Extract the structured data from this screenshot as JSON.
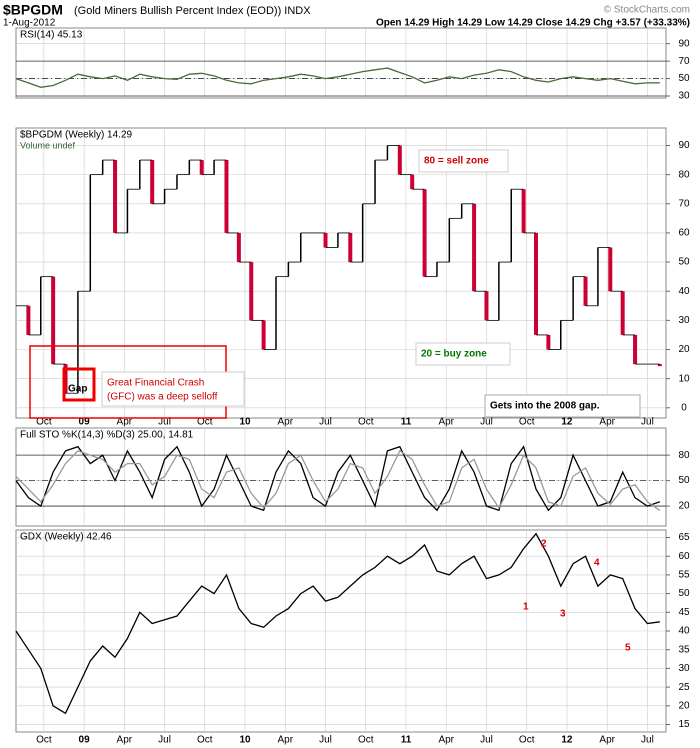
{
  "chart_data": {
    "type": "multi-panel",
    "title": "$BPGDM",
    "subtitle": "(Gold Miners Bullish Percent Index (EOD))  INDX",
    "date": "1-Aug-2012",
    "quote": "Open 14.29  High 14.29  Low 14.29  Close 14.29  Chg +3.57 (+33.33%)",
    "copyright": "© StockCharts.com",
    "xlim": [
      0,
      210
    ],
    "xticks": [
      {
        "value": 9,
        "label": "Oct"
      },
      {
        "value": 22,
        "label": "09"
      },
      {
        "value": 35,
        "label": "Apr"
      },
      {
        "value": 48,
        "label": "Jul"
      },
      {
        "value": 61,
        "label": "Oct"
      },
      {
        "value": 74,
        "label": "10"
      },
      {
        "value": 87,
        "label": "Apr"
      },
      {
        "value": 100,
        "label": "Jul"
      },
      {
        "value": 113,
        "label": "Oct"
      },
      {
        "value": 126,
        "label": "11"
      },
      {
        "value": 139,
        "label": "Apr"
      },
      {
        "value": 152,
        "label": "Jul"
      },
      {
        "value": 165,
        "label": "Oct"
      },
      {
        "value": 178,
        "label": "12"
      },
      {
        "value": 191,
        "label": "Apr"
      },
      {
        "value": 204,
        "label": "Jul"
      }
    ],
    "x": [
      0,
      4,
      8,
      12,
      16,
      20,
      24,
      28,
      32,
      36,
      40,
      44,
      48,
      52,
      56,
      60,
      64,
      68,
      72,
      76,
      80,
      84,
      88,
      92,
      96,
      100,
      104,
      108,
      112,
      116,
      120,
      124,
      128,
      132,
      136,
      140,
      144,
      148,
      152,
      156,
      160,
      164,
      168,
      172,
      176,
      180,
      184,
      188,
      192,
      196,
      200,
      204,
      208
    ],
    "panels": [
      {
        "type": "line",
        "title": "RSI(14) 45.13",
        "ylim": [
          27.7,
          108
        ],
        "yticks": [
          90,
          70,
          50,
          30
        ],
        "ref_lines": [
          70,
          50,
          30
        ],
        "series": [
          {
            "color": "#4a6b3a",
            "values": [
              50,
              45,
              40,
              42,
              48,
              55,
              52,
              50,
              53,
              48,
              55,
              52,
              50,
              49,
              55,
              56,
              53,
              48,
              45,
              44,
              48,
              50,
              52,
              55,
              53,
              50,
              52,
              55,
              58,
              60,
              62,
              57,
              52,
              45,
              48,
              52,
              50,
              54,
              56,
              60,
              58,
              52,
              48,
              46,
              50,
              52,
              50,
              48,
              50,
              47,
              44,
              45,
              45.13
            ]
          }
        ]
      },
      {
        "type": "step",
        "title": "$BPGDM (Weekly) 14.29",
        "subtitle": "Volume undef",
        "ylim": [
          -3.5,
          96
        ],
        "yticks": [
          0,
          10,
          20,
          30,
          40,
          50,
          60,
          70,
          80,
          90
        ],
        "up_color": "#000000",
        "down_color": "#cc0033",
        "annotations": [
          "80 = sell zone",
          "20 = buy zone",
          "Gap",
          "Great Financial Crash",
          "(GFC) was a deep selloff",
          "Gets into the 2008 gap."
        ],
        "series": [
          {
            "values": [
              35,
              25,
              45,
              15,
              5,
              40,
              80,
              85,
              60,
              75,
              85,
              70,
              75,
              80,
              85,
              80,
              85,
              60,
              50,
              30,
              20,
              45,
              50,
              60,
              60,
              55,
              60,
              50,
              70,
              85,
              90,
              80,
              75,
              45,
              50,
              65,
              70,
              40,
              30,
              50,
              75,
              60,
              25,
              20,
              30,
              45,
              35,
              55,
              40,
              25,
              15,
              15,
              14.29
            ]
          }
        ]
      },
      {
        "type": "line",
        "title": "Full STO %K(14,3) %D(3) 25.00, 14.81",
        "ylim": [
          -3.5,
          112
        ],
        "yticks": [
          80,
          50,
          20
        ],
        "ref_lines": [
          80,
          50,
          20
        ],
        "series": [
          {
            "color": "#000000",
            "values": [
              50,
              30,
              20,
              60,
              85,
              90,
              70,
              80,
              50,
              85,
              60,
              30,
              75,
              90,
              60,
              20,
              40,
              80,
              50,
              20,
              15,
              60,
              85,
              70,
              30,
              20,
              60,
              80,
              50,
              20,
              85,
              90,
              60,
              30,
              15,
              40,
              85,
              60,
              20,
              15,
              70,
              90,
              40,
              15,
              30,
              80,
              50,
              20,
              25,
              60,
              30,
              20,
              25
            ]
          },
          {
            "color": "#999999",
            "values": [
              55,
              40,
              25,
              45,
              70,
              85,
              80,
              75,
              60,
              70,
              70,
              45,
              55,
              80,
              75,
              40,
              30,
              60,
              65,
              35,
              18,
              35,
              70,
              80,
              50,
              25,
              40,
              70,
              65,
              35,
              55,
              85,
              75,
              45,
              20,
              25,
              65,
              75,
              40,
              18,
              45,
              80,
              65,
              25,
              20,
              55,
              65,
              35,
              22,
              40,
              45,
              25,
              14.81
            ]
          }
        ]
      },
      {
        "type": "line",
        "title": "GDX (Weekly) 42.46",
        "ylim": [
          13,
          67
        ],
        "yticks": [
          15,
          20,
          25,
          30,
          35,
          40,
          45,
          50,
          55,
          60,
          65
        ],
        "annotations": [
          "1",
          "2",
          "3",
          "4",
          "5"
        ],
        "series": [
          {
            "color": "#000000",
            "values": [
              40,
              35,
              30,
              20,
              18,
              25,
              32,
              36,
              33,
              38,
              45,
              42,
              43,
              44,
              48,
              52,
              50,
              55,
              46,
              42,
              41,
              44,
              46,
              50,
              52,
              48,
              49,
              52,
              55,
              57,
              60,
              58,
              60,
              63,
              56,
              55,
              58,
              60,
              54,
              55,
              57,
              62,
              66,
              60,
              52,
              58,
              60,
              52,
              55,
              54,
              46,
              42,
              42.46
            ]
          }
        ]
      }
    ]
  }
}
